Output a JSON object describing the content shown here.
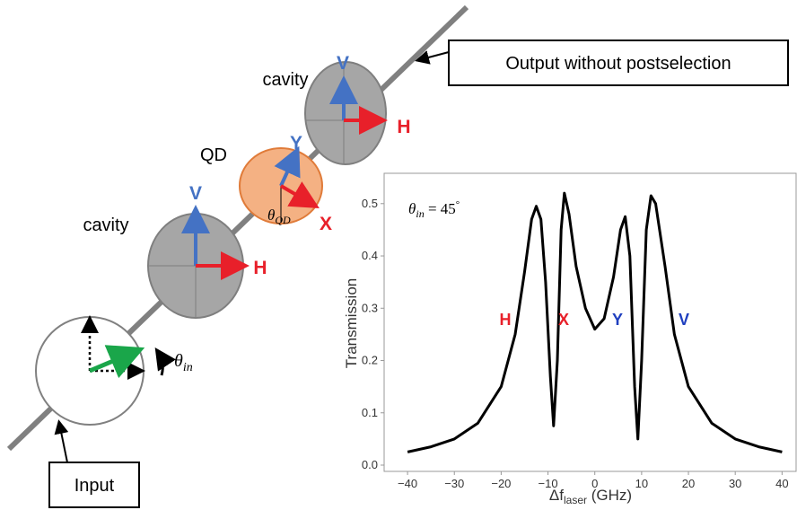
{
  "diagram": {
    "output_box": "Output without postselection",
    "input_box": "Input",
    "cavity_upper": "cavity",
    "cavity_lower": "cavity",
    "qd": "QD",
    "upper_v": "V",
    "upper_h": "H",
    "lower_v": "V",
    "lower_h": "H",
    "qd_y": "Y",
    "qd_x": "X",
    "theta_qd": {
      "symbol": "θ",
      "sub": "QD"
    },
    "theta_in": {
      "symbol": "θ",
      "sub": "in"
    }
  },
  "chart_data": {
    "type": "line",
    "color": "#000000",
    "annotation_theta": {
      "symbol": "θ",
      "sub": "in",
      "rest": " = 45",
      "degree": "°"
    },
    "ylabel": "Transmission",
    "xlabel": {
      "main": "Δf",
      "sub": "laser",
      "unit": " (GHz)"
    },
    "annotations": [
      {
        "text": "H",
        "color": "#e8202a"
      },
      {
        "text": "X",
        "color": "#e8202a"
      },
      {
        "text": "Y",
        "color": "#1f3fbf"
      },
      {
        "text": "V",
        "color": "#1f3fbf"
      }
    ],
    "x": [
      -40,
      -35,
      -30,
      -25,
      -20,
      -17,
      -15,
      -13.5,
      -12.5,
      -11.5,
      -10.5,
      -9.5,
      -8.8,
      -8,
      -7.2,
      -6.5,
      -5.5,
      -4,
      -2,
      0,
      2,
      4,
      5.5,
      6.5,
      7.5,
      8.5,
      9.2,
      10,
      11,
      12,
      13,
      15,
      17,
      20,
      25,
      30,
      35,
      40
    ],
    "values": [
      0.025,
      0.035,
      0.05,
      0.08,
      0.15,
      0.25,
      0.37,
      0.47,
      0.495,
      0.47,
      0.35,
      0.17,
      0.075,
      0.2,
      0.45,
      0.52,
      0.48,
      0.38,
      0.3,
      0.26,
      0.28,
      0.36,
      0.45,
      0.475,
      0.4,
      0.15,
      0.05,
      0.2,
      0.45,
      0.515,
      0.5,
      0.38,
      0.25,
      0.15,
      0.08,
      0.05,
      0.035,
      0.025
    ],
    "xlim": [
      -45,
      43
    ],
    "ylim": [
      -0.012,
      0.558
    ],
    "xticks": [
      {
        "value": -40,
        "label": "−40"
      },
      {
        "value": -30,
        "label": "−30"
      },
      {
        "value": -20,
        "label": "−20"
      },
      {
        "value": -10,
        "label": "−10"
      },
      0,
      10,
      20,
      30,
      40
    ],
    "yticks": [
      {
        "value": 0,
        "label": "0.0"
      },
      0.1,
      0.2,
      0.3,
      0.4,
      0.5
    ]
  }
}
